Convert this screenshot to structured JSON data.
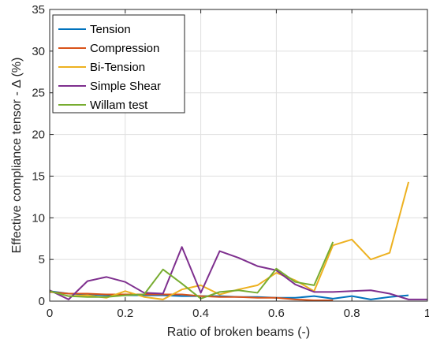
{
  "chart_data": {
    "type": "line",
    "xlabel": "Ratio of broken beams (-)",
    "ylabel": "Effective compliance tensor - Δ (%)",
    "xlim": [
      0,
      1
    ],
    "ylim": [
      0,
      35
    ],
    "xticks": [
      0,
      0.2,
      0.4,
      0.6,
      0.8,
      1
    ],
    "xtick_labels": [
      "0",
      "0.2",
      "0.4",
      "0.6",
      "0.8",
      "1"
    ],
    "yticks": [
      0,
      5,
      10,
      15,
      20,
      25,
      30,
      35
    ],
    "ytick_labels": [
      "0",
      "5",
      "10",
      "15",
      "20",
      "25",
      "30",
      "35"
    ],
    "grid": true,
    "legend_position": "top-left",
    "series": [
      {
        "name": "Tension",
        "color": "#0072BD",
        "x": [
          0,
          0.05,
          0.1,
          0.15,
          0.2,
          0.25,
          0.3,
          0.35,
          0.4,
          0.45,
          0.5,
          0.55,
          0.6,
          0.65,
          0.7,
          0.75,
          0.8,
          0.85,
          0.9,
          0.95
        ],
        "y": [
          1.2,
          0.9,
          0.8,
          0.7,
          0.7,
          0.7,
          0.7,
          0.6,
          0.6,
          0.6,
          0.5,
          0.5,
          0.4,
          0.4,
          0.6,
          0.3,
          0.6,
          0.2,
          0.5,
          0.7
        ]
      },
      {
        "name": "Compression",
        "color": "#D95319",
        "x": [
          0,
          0.05,
          0.1,
          0.15,
          0.2,
          0.25,
          0.3,
          0.35,
          0.4,
          0.45,
          0.5,
          0.55,
          0.6,
          0.65,
          0.7,
          0.75
        ],
        "y": [
          1.1,
          0.9,
          0.9,
          0.8,
          0.8,
          0.8,
          0.8,
          0.8,
          0.6,
          0.5,
          0.5,
          0.4,
          0.4,
          0.2,
          0.1,
          0.1
        ]
      },
      {
        "name": "Bi-Tension",
        "color": "#EDB120",
        "x": [
          0,
          0.05,
          0.1,
          0.15,
          0.2,
          0.25,
          0.3,
          0.35,
          0.4,
          0.45,
          0.5,
          0.55,
          0.6,
          0.65,
          0.7,
          0.75,
          0.8,
          0.85,
          0.9,
          0.95
        ],
        "y": [
          1.2,
          0.6,
          0.7,
          0.4,
          1.2,
          0.5,
          0.2,
          1.4,
          1.9,
          0.8,
          1.4,
          1.9,
          3.4,
          2.5,
          1.2,
          6.7,
          7.4,
          5.0,
          5.8,
          14.3
        ]
      },
      {
        "name": "Simple Shear",
        "color": "#7E2F8E",
        "x": [
          0,
          0.05,
          0.1,
          0.15,
          0.2,
          0.25,
          0.3,
          0.35,
          0.4,
          0.45,
          0.5,
          0.55,
          0.6,
          0.65,
          0.7,
          0.75,
          0.8,
          0.85,
          0.9,
          0.95,
          1.0
        ],
        "y": [
          1.3,
          0.2,
          2.4,
          2.9,
          2.3,
          1.0,
          0.9,
          6.5,
          1.0,
          6.0,
          5.2,
          4.2,
          3.7,
          2.0,
          1.1,
          1.1,
          1.2,
          1.3,
          0.9,
          0.2,
          0.2
        ]
      },
      {
        "name": "Willam test",
        "color": "#77AC30",
        "x": [
          0,
          0.05,
          0.1,
          0.15,
          0.2,
          0.25,
          0.3,
          0.35,
          0.4,
          0.45,
          0.5,
          0.55,
          0.6,
          0.65,
          0.7,
          0.75
        ],
        "y": [
          1.2,
          0.6,
          0.5,
          0.5,
          0.7,
          0.8,
          3.8,
          2.1,
          0.3,
          1.1,
          1.3,
          1.0,
          3.9,
          2.3,
          1.9,
          7.1
        ]
      }
    ]
  }
}
